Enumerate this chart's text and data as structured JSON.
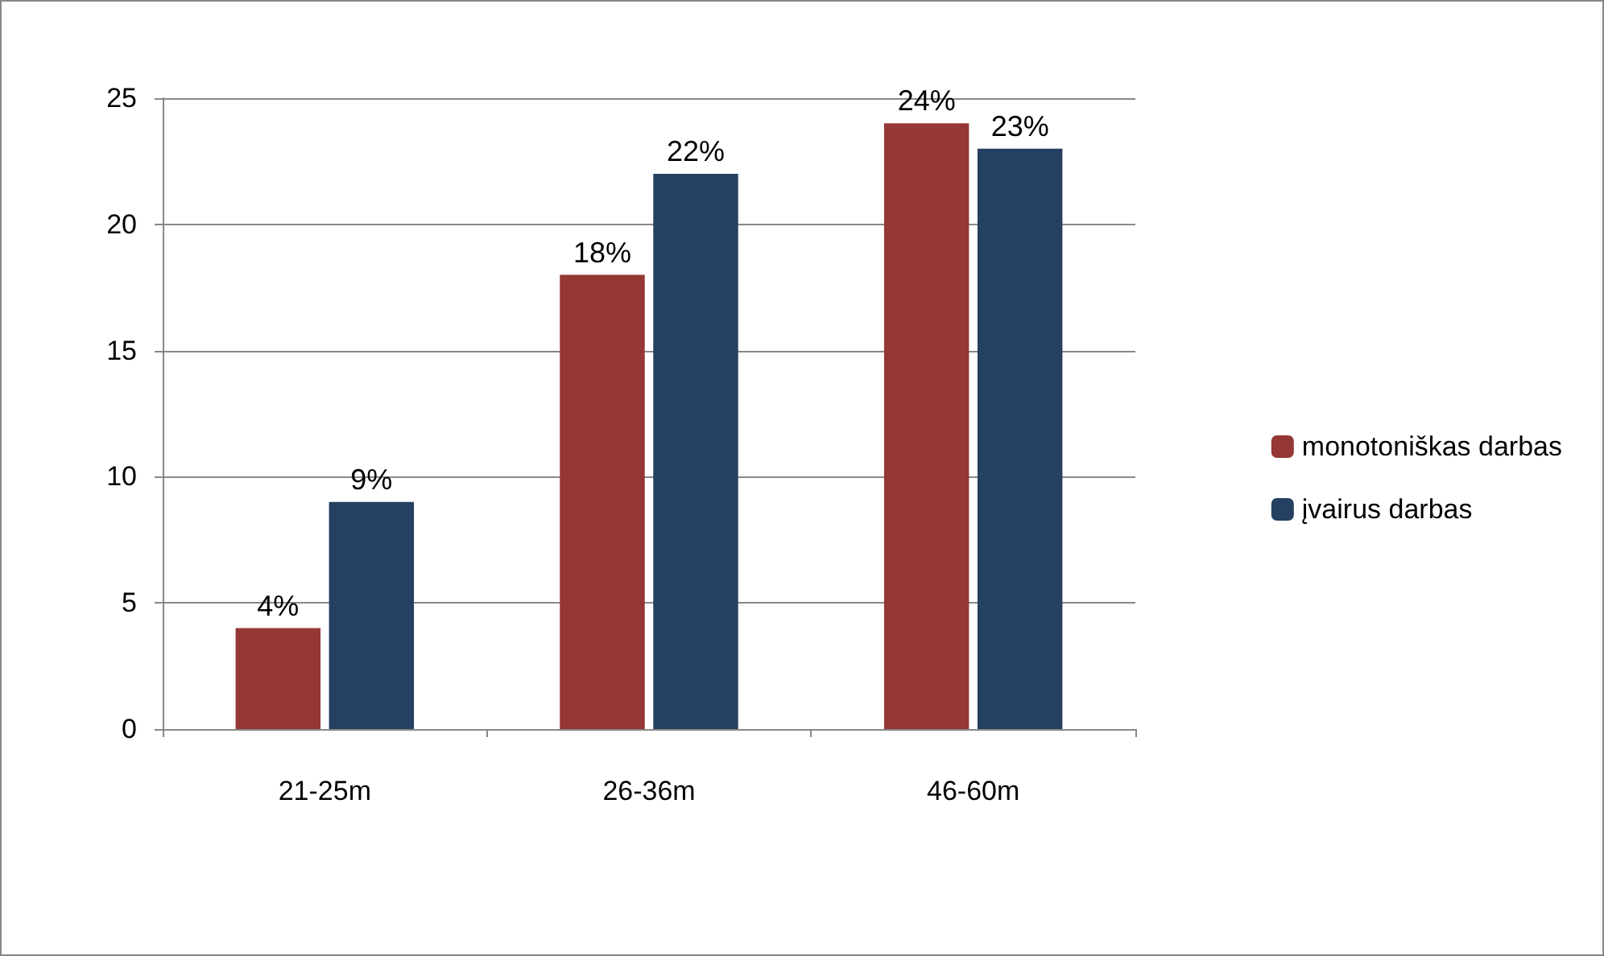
{
  "chart_data": {
    "type": "bar",
    "categories": [
      "21-25m",
      "26-36m",
      "46-60m"
    ],
    "series": [
      {
        "name": "monotoniškas darbas",
        "color": "#953735",
        "values": [
          4,
          18,
          24
        ],
        "value_labels": [
          "4%",
          "18%",
          "24%"
        ]
      },
      {
        "name": "įvairus darbas",
        "color": "#254061",
        "values": [
          9,
          22,
          23
        ],
        "value_labels": [
          "9%",
          "22%",
          "23%"
        ]
      }
    ],
    "ylim": [
      0,
      25
    ],
    "yticks": [
      0,
      5,
      10,
      15,
      20,
      25
    ],
    "grid": "y",
    "legend": "right"
  }
}
